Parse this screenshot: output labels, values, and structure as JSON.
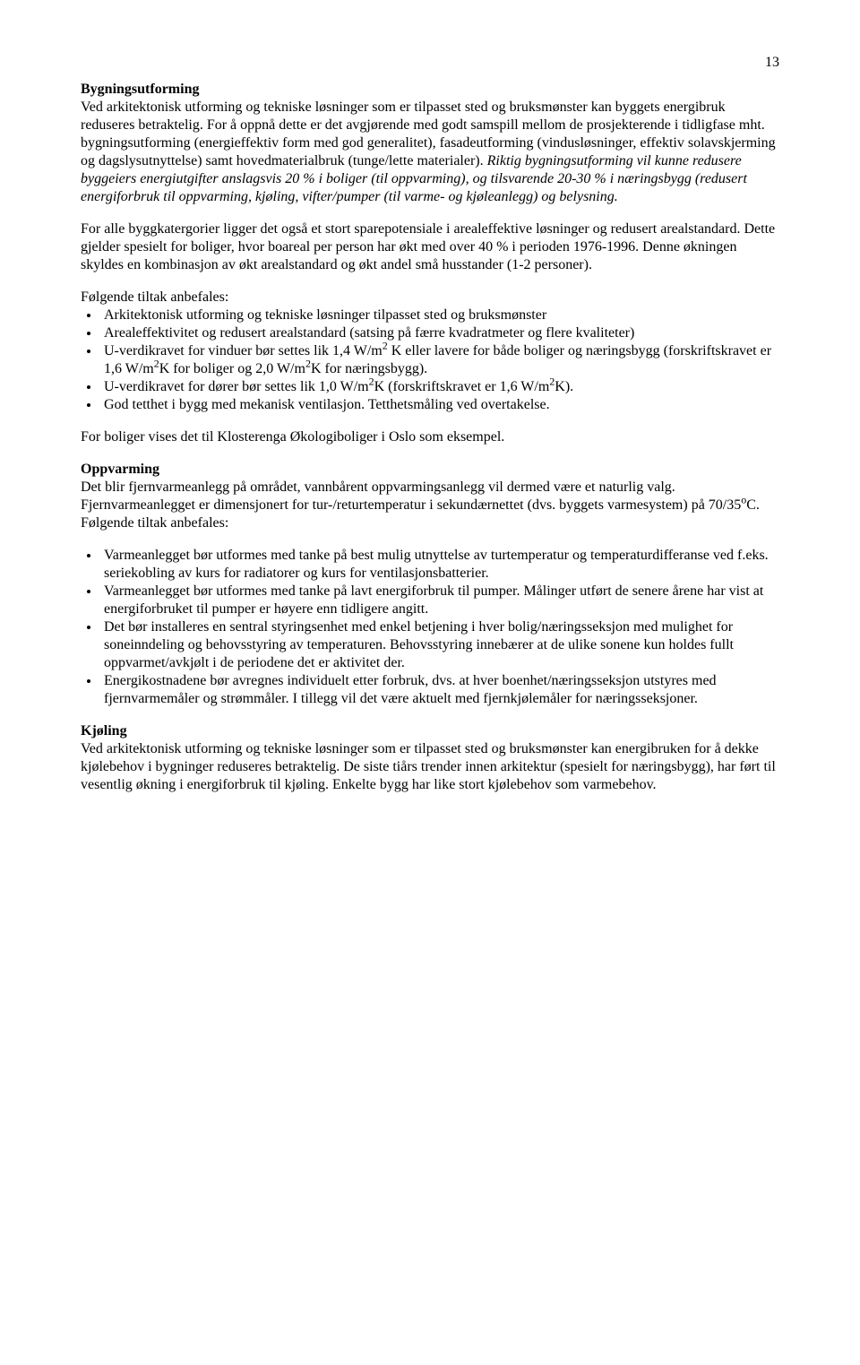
{
  "page_number": "13",
  "sections": {
    "s1": {
      "heading": "Bygningsutforming",
      "p1_a": "Ved arkitektonisk utforming og tekniske løsninger som er tilpasset sted og bruksmønster kan byggets energibruk reduseres betraktelig. For å oppnå dette er det avgjørende med godt samspill mellom de prosjekterende i tidligfase mht. bygningsutforming (energieffektiv form med god generalitet), fasadeutforming (vindusløsninger, effektiv solavskjerming og dagslysutnyttelse) samt hovedmaterialbruk (tunge/lette materialer). ",
      "p1_b": "Riktig bygningsutforming vil kunne redusere byggeiers energiutgifter anslagsvis 20 % i boliger (til oppvarming),  og tilsvarende 20-30 % i næringsbygg (redusert energiforbruk til oppvarming, kjøling, vifter/pumper (til varme- og kjøleanlegg) og belysning.",
      "p2": "For alle byggkatergorier ligger det også et stort sparepotensiale i arealeffektive løsninger og redusert arealstandard. Dette gjelder spesielt for boliger, hvor boareal per person har økt med over 40 % i perioden 1976-1996. Denne økningen skyldes en kombinasjon av økt arealstandard og økt andel små husstander (1-2 personer).",
      "list_intro": "Følgende tiltak anbefales:",
      "list": {
        "i1": "Arkitektonisk utforming og tekniske løsninger tilpasset sted og bruksmønster",
        "i2": "Arealeffektivitet og redusert arealstandard (satsing på færre kvadratmeter og flere kvaliteter)",
        "i3_a": "U-verdikravet for vinduer bør settes lik 1,4 W/m",
        "i3_b": " K eller lavere for både boliger og næringsbygg (forskriftskravet er 1,6 W/m",
        "i3_c": "K for boliger og 2,0 W/m",
        "i3_d": "K for næringsbygg).",
        "i4_a": "U-verdikravet for dører bør settes lik 1,0 W/m",
        "i4_b": "K (forskriftskravet er 1,6 W/m",
        "i4_c": "K).",
        "i5": "God tetthet i bygg med mekanisk ventilasjon. Tetthetsmåling ved overtakelse.",
        "sup2": "2"
      },
      "p3": "For boliger vises det til Klosterenga Økologiboliger i Oslo som eksempel."
    },
    "s2": {
      "heading": "Oppvarming",
      "p1_a": "Det blir fjernvarmeanlegg på området, vannbårent oppvarmingsanlegg vil dermed være et naturlig valg. Fjernvarmeanlegget er dimensjonert for tur-/returtemperatur i sekundærnettet (dvs. byggets varmesystem) på 70/35",
      "p1_b": "C. Følgende tiltak anbefales:",
      "sup_o": "o",
      "list": {
        "i1": "Varmeanlegget bør utformes med tanke på best mulig utnyttelse av turtemperatur og temperaturdifferanse ved f.eks. seriekobling av kurs for radiatorer og kurs for ventilasjonsbatterier.",
        "i2": "Varmeanlegget bør utformes med tanke på lavt energiforbruk til pumper. Målinger utført de senere årene har vist at energiforbruket til pumper er høyere enn tidligere angitt.",
        "i3": "Det bør installeres en sentral styringsenhet med enkel betjening i hver bolig/næringsseksjon med mulighet for soneinndeling og behovsstyring av temperaturen. Behovsstyring innebærer at de ulike sonene kun holdes fullt oppvarmet/avkjølt i de periodene det er aktivitet der.",
        "i4": "Energikostnadene bør avregnes individuelt etter forbruk, dvs. at hver boenhet/næringsseksjon utstyres med fjernvarmemåler og strømmåler. I tillegg vil det være aktuelt med fjernkjølemåler for næringsseksjoner."
      }
    },
    "s3": {
      "heading": "Kjøling",
      "p1": "Ved arkitektonisk utforming og tekniske løsninger som er tilpasset sted og bruksmønster kan energibruken for å dekke kjølebehov i bygninger reduseres betraktelig. De siste tiårs trender innen arkitektur (spesielt for næringsbygg), har ført til vesentlig økning i energiforbruk til kjøling. Enkelte bygg har like stort kjølebehov som varmebehov."
    }
  }
}
